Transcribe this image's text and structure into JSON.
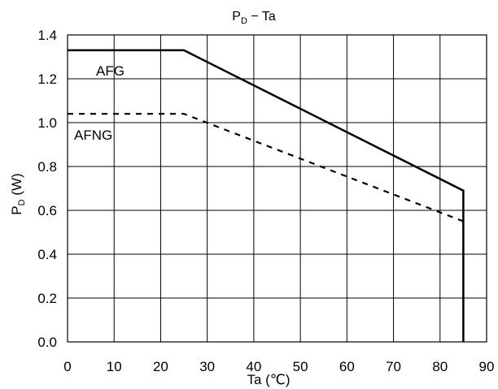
{
  "chart_data": {
    "type": "line",
    "title": {
      "main": "P",
      "sub": "D",
      "rest": " − Ta"
    },
    "xlabel": "Ta (℃)",
    "ylabel": {
      "main": "P",
      "sub": "D",
      "rest": " (W)"
    },
    "xlim": [
      0,
      90
    ],
    "ylim": [
      0,
      1.4
    ],
    "x_ticks": [
      "0",
      "10",
      "20",
      "30",
      "40",
      "50",
      "60",
      "70",
      "80",
      "90"
    ],
    "y_ticks": [
      "0.0",
      "0.2",
      "0.4",
      "0.6",
      "0.8",
      "1.0",
      "1.2",
      "1.4"
    ],
    "grid": true,
    "series": [
      {
        "name": "AFG",
        "line_style": "solid",
        "x": [
          0,
          25,
          85,
          85
        ],
        "y": [
          1.33,
          1.33,
          0.69,
          0.0
        ]
      },
      {
        "name": "AFNG",
        "line_style": "dashed",
        "x": [
          0,
          25,
          85
        ],
        "y": [
          1.04,
          1.04,
          0.55
        ]
      }
    ]
  }
}
